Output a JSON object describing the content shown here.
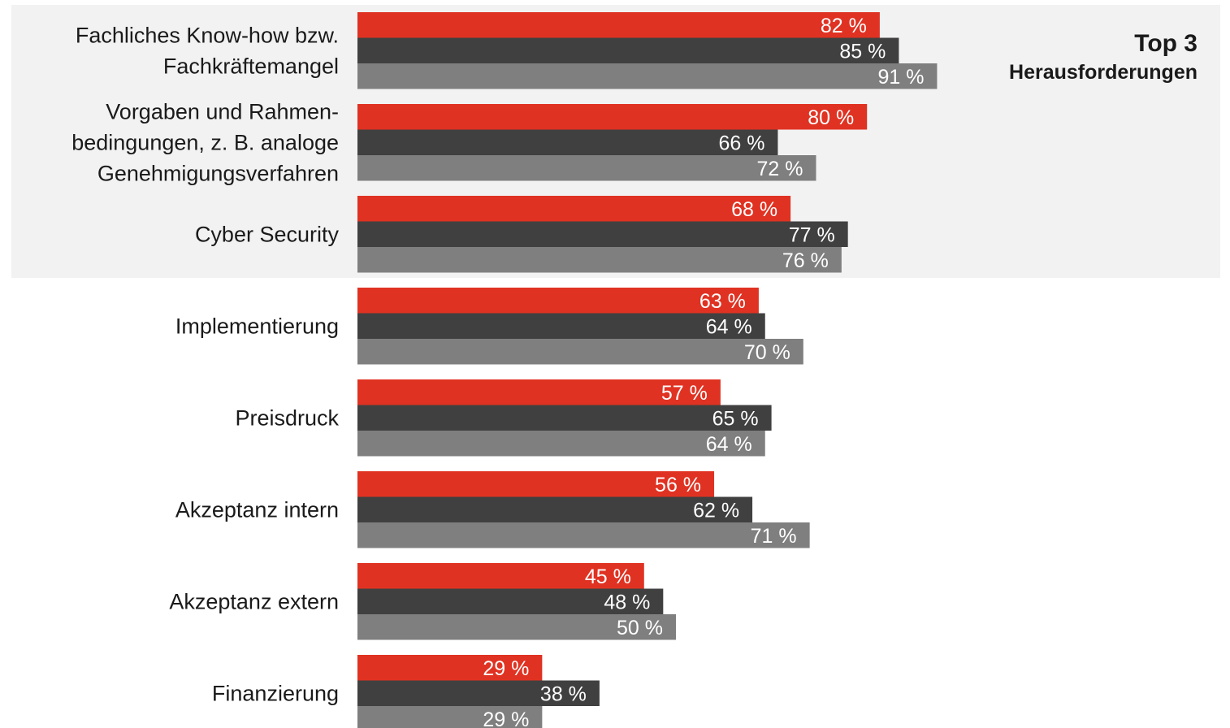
{
  "highlight": {
    "title": "Top 3",
    "subtitle": "Herausforderungen"
  },
  "chart_data": {
    "type": "bar",
    "orientation": "horizontal",
    "xlim": [
      0,
      100
    ],
    "value_suffix": " %",
    "series_colors": [
      "#e03222",
      "#404040",
      "#7f7f7f"
    ],
    "categories": [
      "Fachliches Know-how bzw. Fachkräftemangel",
      "Vorgaben und Rahmen- bedingungen, z. B. analoge Genehmigungsverfahren",
      "Cyber Security",
      "Implementierung",
      "Preisdruck",
      "Akzeptanz intern",
      "Akzeptanz extern",
      "Finanzierung"
    ],
    "category_lines": [
      [
        "Fachliches Know-how bzw.",
        "Fachkräftemangel"
      ],
      [
        "Vorgaben und Rahmen-",
        "bedingungen, z. B. analoge",
        "Genehmigungsverfahren"
      ],
      [
        "Cyber Security"
      ],
      [
        "Implementierung"
      ],
      [
        "Preisdruck"
      ],
      [
        "Akzeptanz intern"
      ],
      [
        "Akzeptanz extern"
      ],
      [
        "Finanzierung"
      ]
    ],
    "series": [
      {
        "values": [
          82,
          80,
          68,
          63,
          57,
          56,
          45,
          29
        ]
      },
      {
        "values": [
          85,
          66,
          77,
          64,
          65,
          62,
          48,
          38
        ]
      },
      {
        "values": [
          91,
          72,
          76,
          70,
          64,
          71,
          50,
          29
        ]
      }
    ]
  }
}
